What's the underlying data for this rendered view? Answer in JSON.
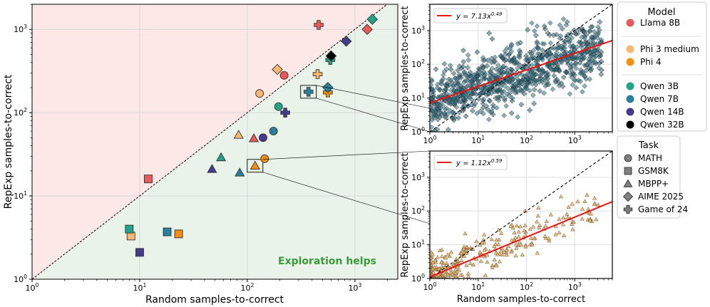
{
  "chart_data": [
    {
      "type": "scatter",
      "xlabel": "Random samples-to-correct",
      "ylabel": "RepExp samples-to-correct",
      "xscale": "log",
      "yscale": "log",
      "xlim": [
        1,
        2500
      ],
      "ylim": [
        1,
        2000
      ],
      "x_ticks": [
        {
          "value": 1,
          "base": "10",
          "exp": "0"
        },
        {
          "value": 10,
          "base": "10",
          "exp": "1"
        },
        {
          "value": 100,
          "base": "10",
          "exp": "2"
        },
        {
          "value": 1000,
          "base": "10",
          "exp": "3"
        }
      ],
      "y_ticks": [
        {
          "value": 1,
          "base": "10",
          "exp": "0"
        },
        {
          "value": 10,
          "base": "10",
          "exp": "1"
        },
        {
          "value": 100,
          "base": "10",
          "exp": "2"
        },
        {
          "value": 1000,
          "base": "10",
          "exp": "3"
        }
      ],
      "grid": true,
      "region_annotation": "Exploration helps",
      "colors": {
        "above_diagonal": "#fde8e8",
        "below_diagonal": "#eaf3ea",
        "annotation": "#3a9a3a"
      },
      "points": [
        {
          "model": "Llama 8B",
          "task": "MATH",
          "x": 220,
          "y": 280
        },
        {
          "model": "Llama 8B",
          "task": "GSM8K",
          "x": 12,
          "y": 16
        },
        {
          "model": "Llama 8B",
          "task": "MBPP+",
          "x": 115,
          "y": 49
        },
        {
          "model": "Llama 8B",
          "task": "AIME 2025",
          "x": 1300,
          "y": 1000
        },
        {
          "model": "Llama 8B",
          "task": "Game of 24",
          "x": 460,
          "y": 1130
        },
        {
          "model": "Phi 3 medium",
          "task": "MATH",
          "x": 130,
          "y": 170
        },
        {
          "model": "Phi 3 medium",
          "task": "GSM8K",
          "x": 8.3,
          "y": 3.3
        },
        {
          "model": "Phi 3 medium",
          "task": "MBPP+",
          "x": 83,
          "y": 54
        },
        {
          "model": "Phi 3 medium",
          "task": "AIME 2025",
          "x": 190,
          "y": 330
        },
        {
          "model": "Phi 3 medium",
          "task": "Game of 24",
          "x": 450,
          "y": 290
        },
        {
          "model": "Phi 4",
          "task": "MATH",
          "x": 145,
          "y": 28
        },
        {
          "model": "Phi 4",
          "task": "GSM8K",
          "x": 23,
          "y": 3.5
        },
        {
          "model": "Phi 4",
          "task": "MBPP+",
          "x": 118,
          "y": 23
        },
        {
          "model": "Phi 4",
          "task": "Game of 24",
          "x": 560,
          "y": 175
        },
        {
          "model": "Qwen 3B",
          "task": "MATH",
          "x": 195,
          "y": 118
        },
        {
          "model": "Qwen 3B",
          "task": "GSM8K",
          "x": 8,
          "y": 4
        },
        {
          "model": "Qwen 3B",
          "task": "MBPP+",
          "x": 57,
          "y": 29
        },
        {
          "model": "Qwen 3B",
          "task": "AIME 2025",
          "x": 1450,
          "y": 1320
        },
        {
          "model": "Qwen 3B",
          "task": "Game of 24",
          "x": 590,
          "y": 430
        },
        {
          "model": "Qwen 7B",
          "task": "MATH",
          "x": 175,
          "y": 60
        },
        {
          "model": "Qwen 7B",
          "task": "GSM8K",
          "x": 18,
          "y": 3.7
        },
        {
          "model": "Qwen 7B",
          "task": "MBPP+",
          "x": 85,
          "y": 19
        },
        {
          "model": "Qwen 7B",
          "task": "AIME 2025",
          "x": 560,
          "y": 200
        },
        {
          "model": "Qwen 7B",
          "task": "Game of 24",
          "x": 370,
          "y": 178
        },
        {
          "model": "Qwen 14B",
          "task": "MATH",
          "x": 140,
          "y": 50
        },
        {
          "model": "Qwen 14B",
          "task": "GSM8K",
          "x": 10,
          "y": 2.1
        },
        {
          "model": "Qwen 14B",
          "task": "MBPP+",
          "x": 47,
          "y": 21
        },
        {
          "model": "Qwen 14B",
          "task": "AIME 2025",
          "x": 830,
          "y": 720
        },
        {
          "model": "Qwen 14B",
          "task": "Game of 24",
          "x": 225,
          "y": 100
        },
        {
          "model": "Qwen 32B",
          "task": "AIME 2025",
          "x": 600,
          "y": 480
        }
      ],
      "zoom_boxes": [
        {
          "center_x": 370,
          "center_y": 178,
          "links_to_inset": 0
        },
        {
          "center_x": 118,
          "center_y": 23,
          "links_to_inset": 1
        }
      ]
    },
    {
      "type": "scatter",
      "xscale": "log",
      "yscale": "log",
      "xlim": [
        1,
        6000
      ],
      "ylim": [
        1,
        6000
      ],
      "x_ticks": [
        {
          "value": 1,
          "base": "10",
          "exp": "0"
        },
        {
          "value": 10,
          "base": "10",
          "exp": "1"
        },
        {
          "value": 100,
          "base": "10",
          "exp": "2"
        },
        {
          "value": 1000,
          "base": "10",
          "exp": "3"
        }
      ],
      "y_ticks": [
        {
          "value": 1,
          "base": "10",
          "exp": "0"
        },
        {
          "value": 10,
          "base": "10",
          "exp": "1"
        },
        {
          "value": 100,
          "base": "10",
          "exp": "2"
        },
        {
          "value": 1000,
          "base": "10",
          "exp": "3"
        }
      ],
      "ylabel": "RepExp samples-to-correct",
      "grid": true,
      "point_color": "#2e6e82",
      "fit": {
        "legend_text": "y = 7.13x",
        "exponent_text": "0.49",
        "a": 7.13,
        "b": 0.49,
        "color": "#ee1111"
      },
      "cloud": {
        "x_range": [
          1,
          3600
        ],
        "approx_points": 900,
        "markers": [
          "Game of 24",
          "AIME 2025"
        ]
      }
    },
    {
      "type": "scatter",
      "xscale": "log",
      "yscale": "log",
      "xlim": [
        1,
        6000
      ],
      "ylim": [
        1,
        6000
      ],
      "x_ticks": [
        {
          "value": 1,
          "base": "10",
          "exp": "0"
        },
        {
          "value": 10,
          "base": "10",
          "exp": "1"
        },
        {
          "value": 100,
          "base": "10",
          "exp": "2"
        },
        {
          "value": 1000,
          "base": "10",
          "exp": "3"
        }
      ],
      "y_ticks": [
        {
          "value": 1,
          "base": "10",
          "exp": "0"
        },
        {
          "value": 10,
          "base": "10",
          "exp": "1"
        },
        {
          "value": 100,
          "base": "10",
          "exp": "2"
        },
        {
          "value": 1000,
          "base": "10",
          "exp": "3"
        }
      ],
      "xlabel": "Random samples-to-correct",
      "ylabel": "RepExp samples-to-correct",
      "grid": true,
      "point_color": "#f3b766",
      "fit": {
        "legend_text": "y = 1.12x",
        "exponent_text": "0.59",
        "a": 1.12,
        "b": 0.59,
        "color": "#ee1111"
      },
      "cloud": {
        "x_range": [
          1,
          3500
        ],
        "approx_points": 320,
        "markers": [
          "MBPP+"
        ]
      }
    }
  ],
  "legend": {
    "model_title": "Model",
    "models": [
      {
        "name": "Llama 8B",
        "color": "#e8595a"
      },
      {
        "name": "Phi 3 medium",
        "color": "#f8b872"
      },
      {
        "name": "Phi 4",
        "color": "#f2900d"
      },
      {
        "name": "Qwen 3B",
        "color": "#22a486"
      },
      {
        "name": "Qwen 7B",
        "color": "#2a7f9b"
      },
      {
        "name": "Qwen 14B",
        "color": "#433b8b"
      },
      {
        "name": "Qwen 32B",
        "color": "#000000"
      }
    ],
    "task_title": "Task",
    "tasks": [
      {
        "name": "MATH",
        "marker": "circle"
      },
      {
        "name": "GSM8K",
        "marker": "square"
      },
      {
        "name": "MBPP+",
        "marker": "triangle"
      },
      {
        "name": "AIME 2025",
        "marker": "diamond"
      },
      {
        "name": "Game of 24",
        "marker": "plus"
      }
    ]
  }
}
